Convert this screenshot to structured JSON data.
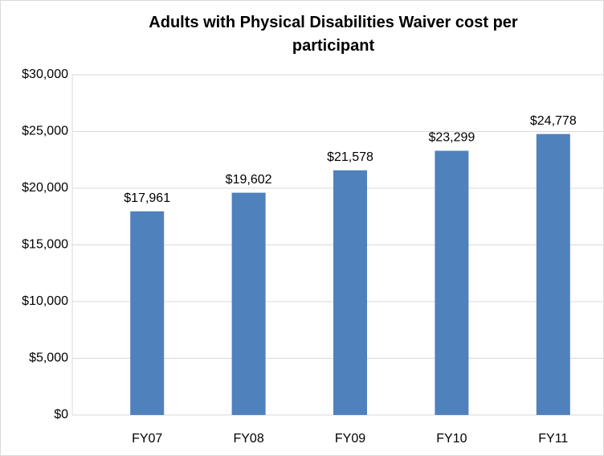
{
  "chart_data": {
    "type": "bar",
    "title": "Adults with Physical Disabilities Waiver cost per participant",
    "categories": [
      "FY07",
      "FY08",
      "FY09",
      "FY10",
      "FY11"
    ],
    "values": [
      17961,
      19602,
      21578,
      23299,
      24778
    ],
    "value_labels": [
      "$17,961",
      "$19,602",
      "$21,578",
      "$23,299",
      "$24,778"
    ],
    "color": "#4f81bd",
    "ylim": [
      0,
      30000
    ],
    "yticks": [
      {
        "value": 0,
        "label": "$0"
      },
      {
        "value": 5000,
        "label": "$5,000"
      },
      {
        "value": 10000,
        "label": "$10,000"
      },
      {
        "value": 15000,
        "label": "$15,000"
      },
      {
        "value": 20000,
        "label": "$20,000"
      },
      {
        "value": 25000,
        "label": "$25,000"
      },
      {
        "value": 30000,
        "label": "$30,000"
      }
    ],
    "grid": true
  }
}
